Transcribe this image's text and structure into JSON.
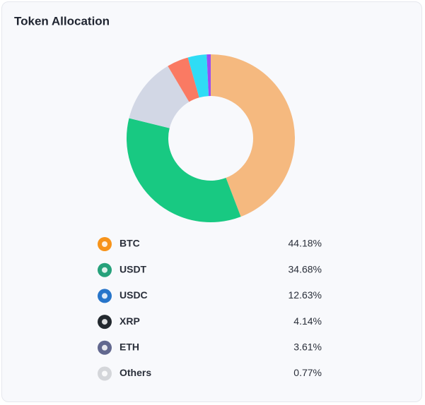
{
  "chart_data": {
    "type": "donut",
    "title": "Token Allocation",
    "categories": [
      "BTC",
      "USDT",
      "USDC",
      "XRP",
      "ETH",
      "Others"
    ],
    "values": [
      44.18,
      34.68,
      12.63,
      4.14,
      3.61,
      0.77
    ],
    "value_labels": [
      "44.18%",
      "34.68%",
      "12.63%",
      "4.14%",
      "3.61%",
      "0.77%"
    ],
    "colors": [
      "#f5b97f",
      "#18c982",
      "#d2d7e5",
      "#fa7a63",
      "#2fdcf5",
      "#9a4df2"
    ]
  }
}
